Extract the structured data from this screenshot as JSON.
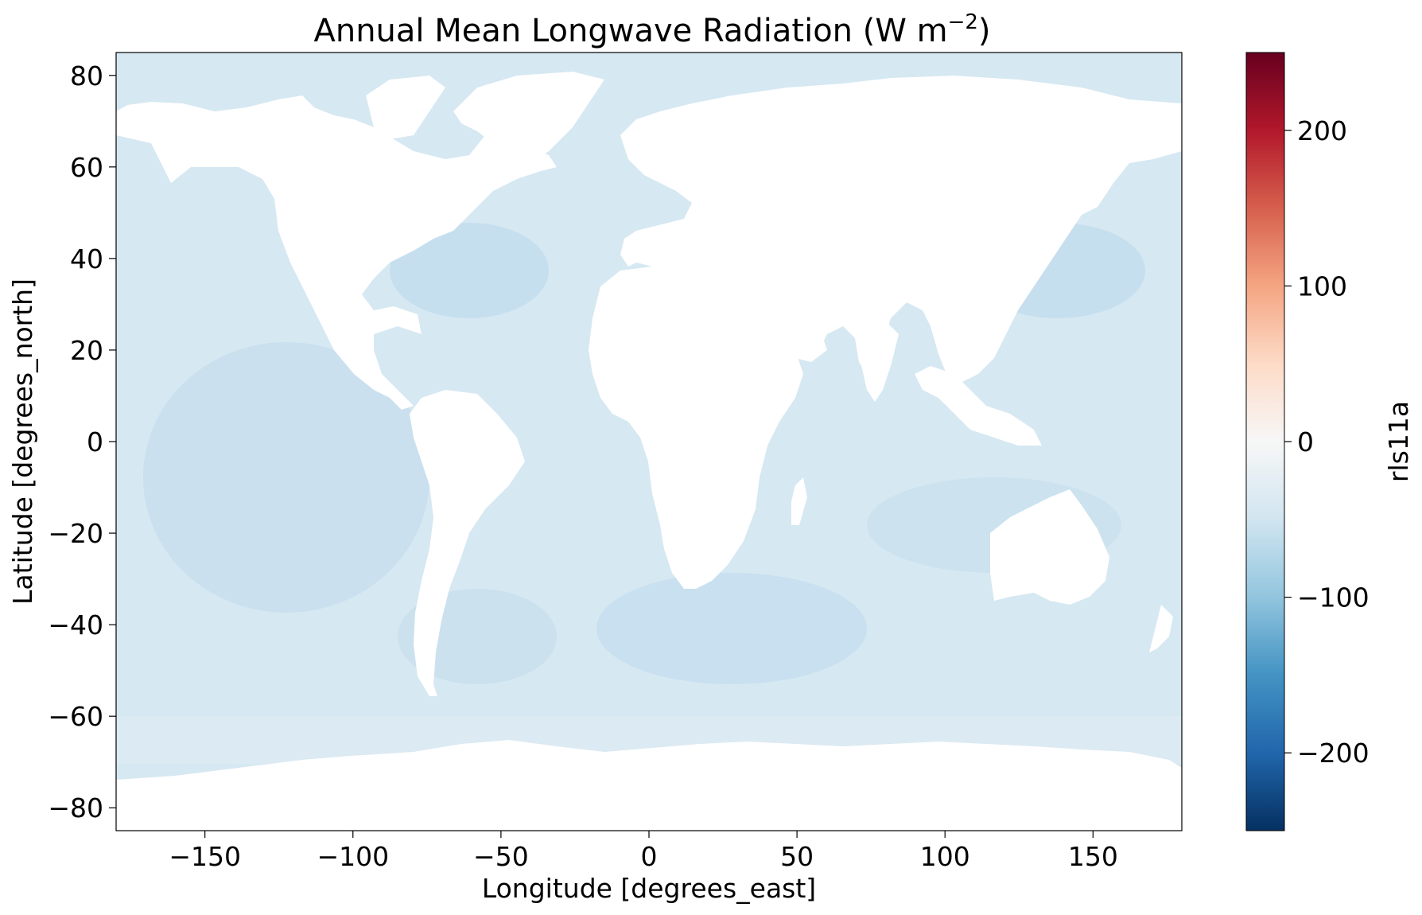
{
  "chart_data": {
    "type": "heatmap",
    "title": "Annual Mean Longwave Radiation (W m",
    "title_superscript": "−2",
    "title_suffix": ")",
    "xlabel": "Longitude [degrees_east]",
    "ylabel": "Latitude [degrees_north]",
    "xlim": [
      -180,
      180
    ],
    "ylim": [
      -85,
      85
    ],
    "x_ticks": [
      -150,
      -100,
      -50,
      0,
      50,
      100,
      150
    ],
    "x_tick_labels": [
      "−150",
      "−100",
      "−50",
      "0",
      "50",
      "100",
      "150"
    ],
    "y_ticks": [
      80,
      60,
      40,
      20,
      0,
      -20,
      -40,
      -60,
      -80
    ],
    "y_tick_labels": [
      "80",
      "60",
      "40",
      "20",
      "0",
      "−20",
      "−40",
      "−60",
      "−80"
    ],
    "grid": false,
    "land_masked": true,
    "ocean_value_range": [
      -75,
      -40
    ],
    "colorbar": {
      "label": "rls11a",
      "colormap": "RdBu_r",
      "vmin": -250,
      "vmax": 250,
      "ticks": [
        200,
        100,
        0,
        -100,
        -200
      ],
      "tick_labels": [
        "200",
        "100",
        "0",
        "−100",
        "−200"
      ],
      "stops": [
        "#053061",
        "#2166ac",
        "#4393c3",
        "#92c5de",
        "#d1e5f0",
        "#f7f7f7",
        "#fddbc7",
        "#f4a582",
        "#d6604d",
        "#b2182b",
        "#67001f"
      ]
    },
    "field_color": "#d6e8f2",
    "land_color": "#ffffff"
  }
}
